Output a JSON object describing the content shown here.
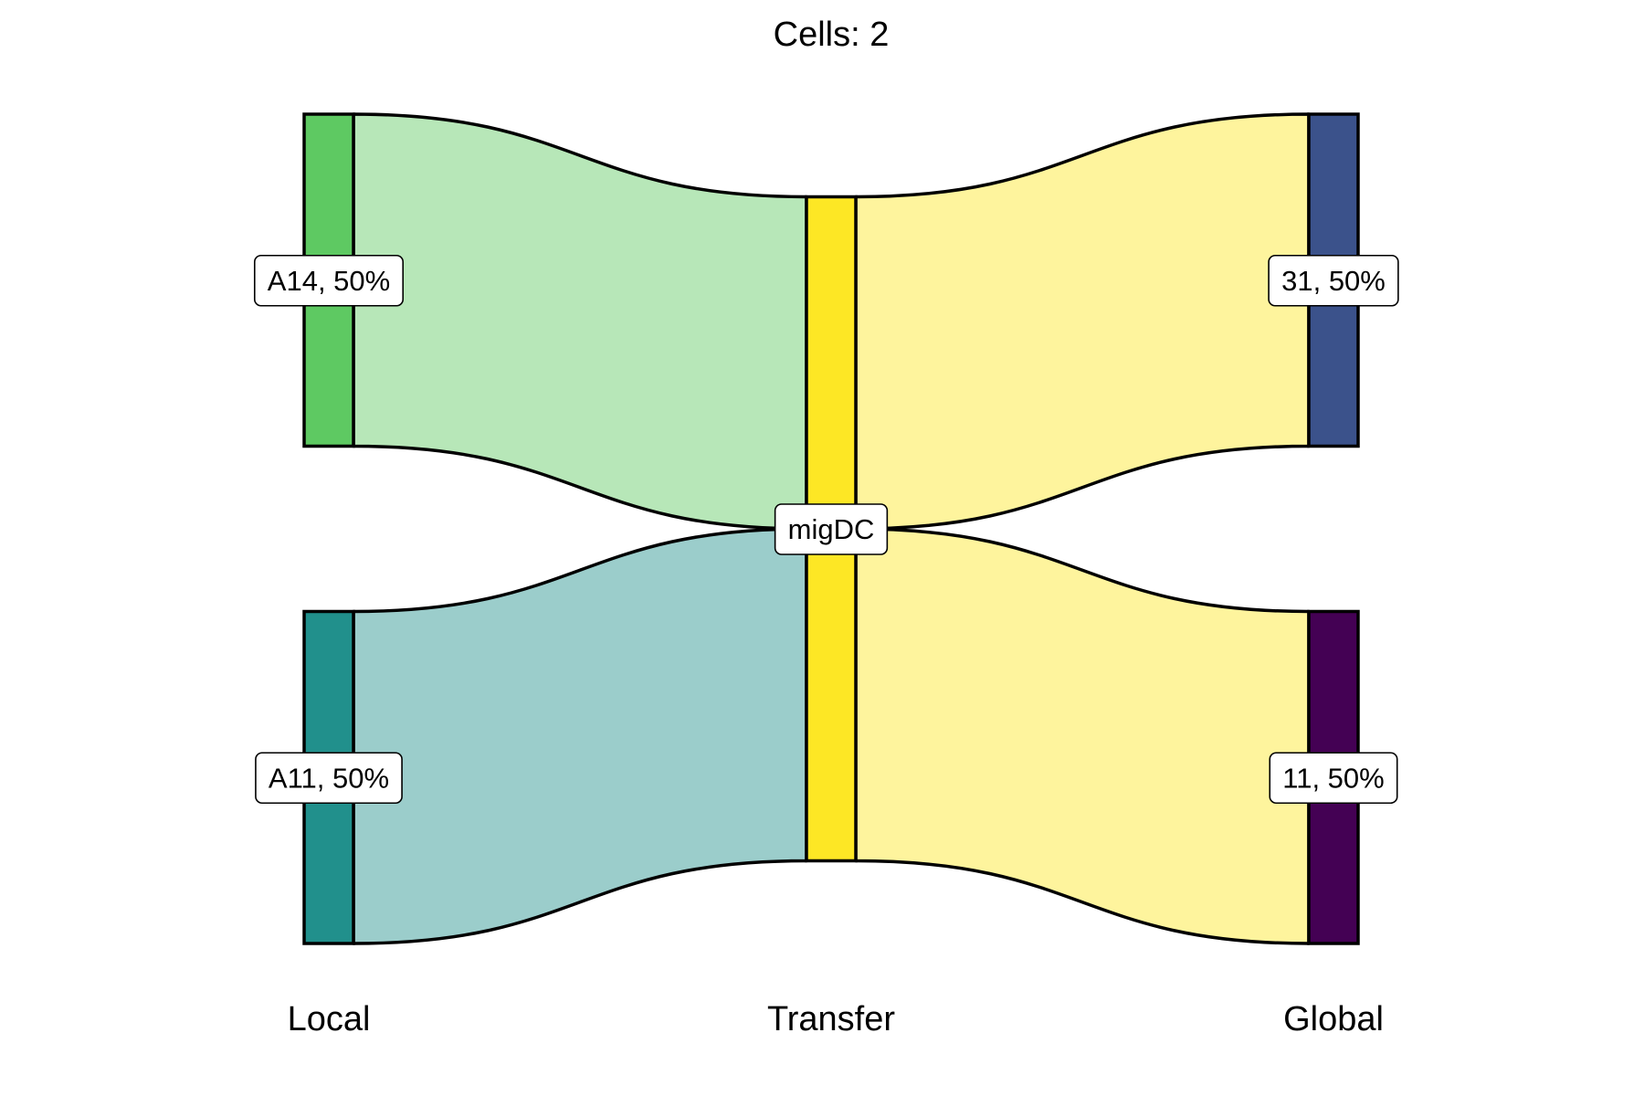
{
  "chart_data": {
    "type": "alluvial",
    "title": "Cells:  2",
    "axes": [
      "Local",
      "Transfer",
      "Global"
    ],
    "strata": {
      "Local": [
        {
          "name": "A14",
          "count": 1,
          "label": "A14, 50%",
          "color": "#5EC962"
        },
        {
          "name": "A11",
          "count": 1,
          "label": "A11, 50%",
          "color": "#21908C"
        }
      ],
      "Transfer": [
        {
          "name": "migDC",
          "count": 2,
          "label": "migDC",
          "color": "#FDE725"
        }
      ],
      "Global": [
        {
          "name": "31",
          "count": 1,
          "label": "31, 50%",
          "color": "#3B528B"
        },
        {
          "name": "11",
          "count": 1,
          "label": "11, 50%",
          "color": "#440154"
        }
      ]
    },
    "flows": [
      {
        "local": "A14",
        "transfer": "migDC",
        "global": "31",
        "count": 1
      },
      {
        "local": "A11",
        "transfer": "migDC",
        "global": "11",
        "count": 1
      }
    ],
    "legend": "none",
    "grid": false
  }
}
